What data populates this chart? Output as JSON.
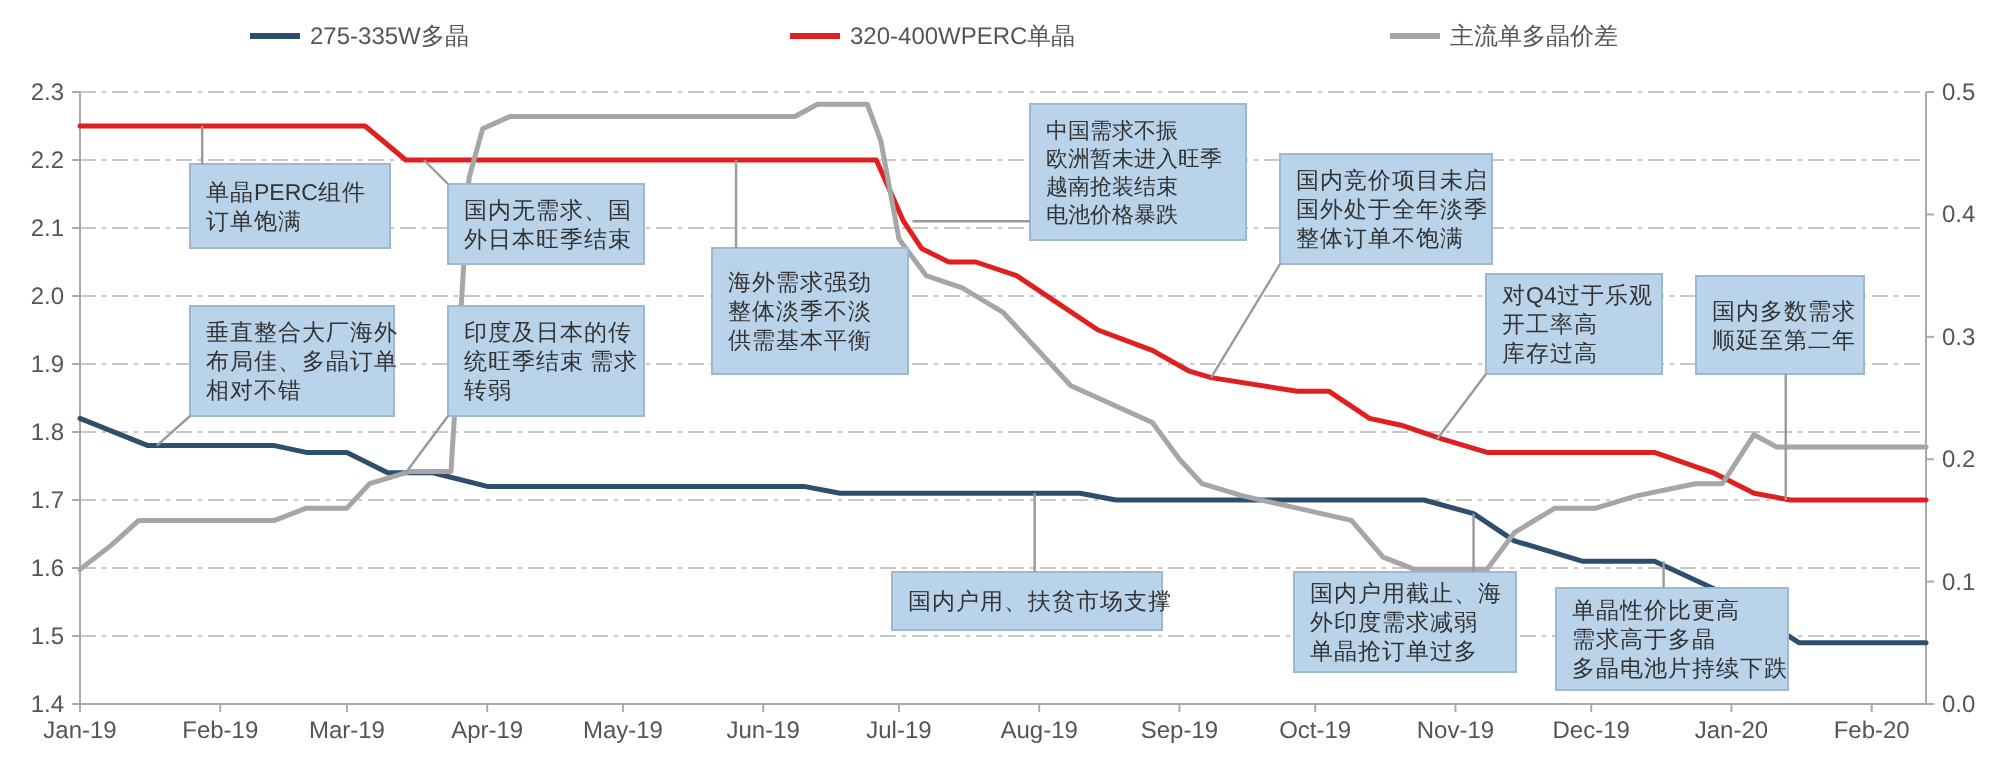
{
  "chart_data": {
    "type": "line",
    "xlim": [
      "2019-01-01",
      "2020-02-13"
    ],
    "xticks": [
      {
        "value": "2019-01-01",
        "label": "Jan-19"
      },
      {
        "value": "2019-02-01",
        "label": "Feb-19"
      },
      {
        "value": "2019-03-01",
        "label": "Mar-19"
      },
      {
        "value": "2019-04-01",
        "label": "Apr-19"
      },
      {
        "value": "2019-05-01",
        "label": "May-19"
      },
      {
        "value": "2019-06-01",
        "label": "Jun-19"
      },
      {
        "value": "2019-07-01",
        "label": "Jul-19"
      },
      {
        "value": "2019-08-01",
        "label": "Aug-19"
      },
      {
        "value": "2019-09-01",
        "label": "Sep-19"
      },
      {
        "value": "2019-10-01",
        "label": "Oct-19"
      },
      {
        "value": "2019-11-01",
        "label": "Nov-19"
      },
      {
        "value": "2019-12-01",
        "label": "Dec-19"
      },
      {
        "value": "2020-01-01",
        "label": "Jan-20"
      },
      {
        "value": "2020-02-01",
        "label": "Feb-20"
      }
    ],
    "ylim": [
      1.4,
      2.3
    ],
    "yticks": [
      1.4,
      1.5,
      1.6,
      1.7,
      1.8,
      1.9,
      {
        "value": 2,
        "label": "2.0"
      },
      2.1,
      2.2,
      2.3
    ],
    "y2lim": [
      0,
      0.5
    ],
    "y2ticks": [
      {
        "value": 0,
        "label": "0.0"
      },
      0.1,
      0.2,
      0.3,
      0.4,
      0.5
    ],
    "grid": "y",
    "legend": "top",
    "marker": "none",
    "line_style": "solid",
    "series": [
      {
        "name": "275-335W多晶",
        "color": "#2e4e6e",
        "x": [
          "2019-01-01",
          "2019-01-16",
          "2019-02-13",
          "2019-02-20",
          "2019-03-01",
          "2019-03-10",
          "2019-03-20",
          "2019-04-01",
          "2019-06-10",
          "2019-06-18",
          "2019-08-10",
          "2019-08-18",
          "2019-10-25",
          "2019-11-05",
          "2019-11-14",
          "2019-11-29",
          "2019-12-15",
          "2019-12-28",
          "2020-01-16",
          "2020-02-13"
        ],
        "values": [
          1.82,
          1.78,
          1.78,
          1.77,
          1.77,
          1.74,
          1.74,
          1.72,
          1.72,
          1.71,
          1.71,
          1.7,
          1.7,
          1.68,
          1.64,
          1.61,
          1.61,
          1.57,
          1.49,
          1.49
        ]
      },
      {
        "name": "320-400WPERC单晶",
        "color": "#e02020",
        "x": [
          "2019-01-01",
          "2019-03-05",
          "2019-03-14",
          "2019-06-26",
          "2019-07-02",
          "2019-07-06",
          "2019-07-12",
          "2019-07-18",
          "2019-07-27",
          "2019-08-05",
          "2019-08-14",
          "2019-08-26",
          "2019-09-03",
          "2019-09-08",
          "2019-09-27",
          "2019-10-04",
          "2019-10-13",
          "2019-10-20",
          "2019-10-29",
          "2019-11-08",
          "2019-12-15",
          "2019-12-28",
          "2020-01-06",
          "2020-01-14",
          "2020-02-13"
        ],
        "values": [
          2.25,
          2.25,
          2.2,
          2.2,
          2.11,
          2.07,
          2.05,
          2.05,
          2.03,
          1.99,
          1.95,
          1.92,
          1.89,
          1.88,
          1.86,
          1.86,
          1.82,
          1.81,
          1.79,
          1.77,
          1.77,
          1.74,
          1.71,
          1.7,
          1.7
        ]
      },
      {
        "name": "主流单多晶价差",
        "color": "#a6a6a6",
        "axis": "y2",
        "x": [
          "2019-01-01",
          "2019-01-08",
          "2019-01-14",
          "2019-02-13",
          "2019-02-20",
          "2019-03-01",
          "2019-03-06",
          "2019-03-15",
          "2019-03-24",
          "2019-03-28",
          "2019-03-31",
          "2019-04-06",
          "2019-06-08",
          "2019-06-13",
          "2019-06-24",
          "2019-06-27",
          "2019-07-01",
          "2019-07-07",
          "2019-07-15",
          "2019-07-24",
          "2019-08-08",
          "2019-08-26",
          "2019-09-01",
          "2019-09-06",
          "2019-09-15",
          "2019-09-27",
          "2019-10-09",
          "2019-10-16",
          "2019-10-23",
          "2019-11-08",
          "2019-11-14",
          "2019-11-23",
          "2019-12-02",
          "2019-12-11",
          "2019-12-24",
          "2019-12-30",
          "2020-01-06",
          "2020-01-11",
          "2020-01-14",
          "2020-02-13"
        ],
        "values": [
          0.11,
          0.13,
          0.15,
          0.15,
          0.16,
          0.16,
          0.18,
          0.19,
          0.19,
          0.43,
          0.47,
          0.48,
          0.48,
          0.49,
          0.49,
          0.46,
          0.38,
          0.35,
          0.34,
          0.32,
          0.26,
          0.23,
          0.2,
          0.18,
          0.17,
          0.16,
          0.15,
          0.12,
          0.11,
          0.11,
          0.14,
          0.16,
          0.16,
          0.17,
          0.18,
          0.18,
          0.22,
          0.21,
          0.21,
          0.21
        ]
      }
    ],
    "annotations": [
      {
        "text": "单晶PERC组件订单饱满",
        "x": "2019-01-28",
        "y": 2.25
      },
      {
        "text": "国内无需求、国外日本旺季结束",
        "x": "2019-03-18",
        "y": 2.2
      },
      {
        "text": "海外需求强劲整体淡季不淡供需基本平衡",
        "x": "2019-05-26",
        "y": 2.2
      },
      {
        "text": "垂直整合大厂海外布局佳、多晶订单相对不错",
        "x": "2019-01-18",
        "y": 1.78
      },
      {
        "text": "印度及日本的传统旺季结束 需求转弱",
        "x": "2019-03-14",
        "y": 1.74
      },
      {
        "text": "中国需求不振欧洲暂未进入旺季越南抢装结束电池价格暴跌",
        "x": "2019-07-04",
        "y": 2.11
      },
      {
        "text": "国内竞价项目未启国外处于全年淡季整体订单不饱满",
        "x": "2019-09-08",
        "y": 1.88
      },
      {
        "text": "对Q4过于乐观开工率高库存过高",
        "x": "2019-10-28",
        "y": 1.79
      },
      {
        "text": "国内多数需求顺延至第二年",
        "x": "2020-01-13",
        "y": 1.7
      },
      {
        "text": "国内户用、扶贫市场支撑",
        "x": "2019-07-31",
        "y": 1.71
      },
      {
        "text": "国内户用截止、海外印度需求减弱单晶抢订单过多",
        "x": "2019-11-05",
        "y": 1.68
      },
      {
        "text": "单晶性价比更高需求高于多晶多晶电池片持续下跌",
        "x": "2019-12-17",
        "y": 1.61
      }
    ]
  }
}
